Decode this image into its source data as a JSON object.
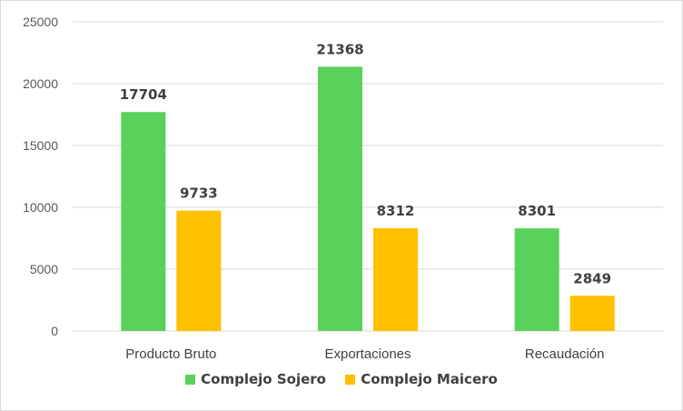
{
  "chart_data": {
    "type": "bar",
    "title": "",
    "xlabel": "",
    "ylabel": "",
    "categories": [
      "Producto Bruto",
      "Exportaciones",
      "Recaudación"
    ],
    "series": [
      {
        "name": "Complejo Sojero",
        "values": [
          17704,
          21368,
          8301
        ],
        "color": "#5ad15a"
      },
      {
        "name": "Complejo Maicero",
        "values": [
          9733,
          8312,
          2849
        ],
        "color": "#ffc000"
      }
    ],
    "ylim": [
      0,
      25000
    ],
    "yticks": [
      0,
      5000,
      10000,
      15000,
      20000,
      25000
    ],
    "grid": true,
    "legend_position": "bottom",
    "data_labels": true
  }
}
